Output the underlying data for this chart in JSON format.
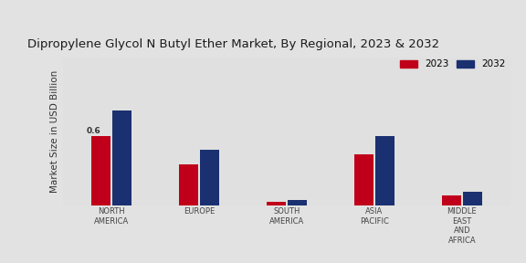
{
  "title": "Dipropylene Glycol N Butyl Ether Market, By Regional, 2023 & 2032",
  "ylabel": "Market Size in USD Billion",
  "categories": [
    "NORTH\nAMERICA",
    "EUROPE",
    "SOUTH\nAMERICA",
    "ASIA\nPACIFIC",
    "MIDDLE\nEAST\nAND\nAFRICA"
  ],
  "values_2023": [
    0.6,
    0.35,
    0.025,
    0.44,
    0.08
  ],
  "values_2032": [
    0.82,
    0.48,
    0.042,
    0.6,
    0.115
  ],
  "color_2023": "#c0001a",
  "color_2032": "#1a3070",
  "annotation_text": "0.6",
  "annotation_category": 0,
  "background_color": "#e0e0e0",
  "bar_width": 0.22,
  "legend_labels": [
    "2023",
    "2032"
  ],
  "title_fontsize": 9.5,
  "ylabel_fontsize": 7.5,
  "tick_fontsize": 6.0
}
